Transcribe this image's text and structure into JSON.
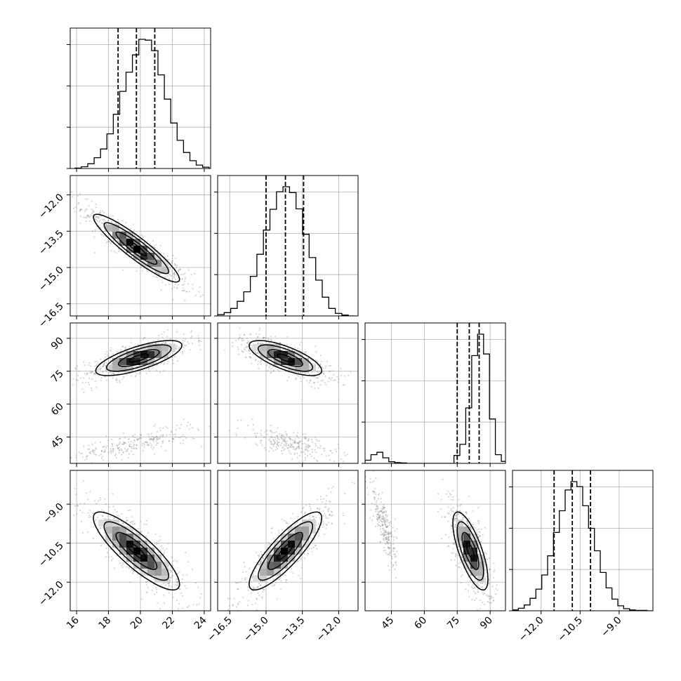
{
  "chart_data": {
    "type": "corner",
    "params": [
      {
        "ticks": [
          "16",
          "18",
          "20",
          "22",
          "24"
        ],
        "lim": [
          15.6,
          24.4
        ],
        "quantiles": [
          18.6,
          19.75,
          20.9
        ]
      },
      {
        "ticks": [
          "−16.5",
          "−15.0",
          "−13.5",
          "−12.0"
        ],
        "lim": [
          -17.0,
          -11.2
        ],
        "quantiles": [
          -15.0,
          -14.2,
          -13.45
        ]
      },
      {
        "ticks": [
          "45",
          "60",
          "75",
          "90"
        ],
        "lim": [
          33.0,
          97.0
        ],
        "quantiles": [
          75.0,
          80.5,
          85.0
        ]
      },
      {
        "ticks": [
          "−12.0",
          "−10.5",
          "−9.0"
        ],
        "lim": [
          -13.1,
          -7.7
        ],
        "quantiles": [
          -11.5,
          -10.8,
          -10.1
        ]
      }
    ],
    "marginals": [
      {
        "bin_start": 15.9,
        "bin_width": 0.4,
        "counts": [
          1,
          4,
          11,
          25,
          45,
          80,
          125,
          178,
          222,
          262,
          298,
          296,
          272,
          216,
          160,
          105,
          65,
          37,
          18,
          8,
          3,
          0
        ]
      },
      {
        "bin_start": -17.0,
        "bin_width": 0.27,
        "counts": [
          3,
          8,
          18,
          35,
          58,
          95,
          148,
          206,
          256,
          298,
          310,
          296,
          257,
          196,
          140,
          86,
          45,
          18,
          6,
          2,
          0
        ]
      },
      {
        "bin_start": 33.0,
        "bin_width": 2.7,
        "counts": [
          8,
          22,
          28,
          14,
          4,
          2,
          1,
          0,
          0,
          0,
          0,
          0,
          0,
          0,
          0,
          20,
          48,
          140,
          272,
          326,
          276,
          112,
          22,
          5
        ]
      },
      {
        "bin_start": -13.1,
        "bin_width": 0.225,
        "counts": [
          2,
          6,
          14,
          30,
          52,
          86,
          132,
          188,
          240,
          290,
          310,
          298,
          252,
          198,
          144,
          92,
          55,
          28,
          12,
          5,
          2,
          1,
          1,
          0
        ]
      }
    ],
    "pairs": [
      {
        "row": 1,
        "col": 0,
        "mean": [
          19.75,
          -14.2
        ],
        "sd": [
          1.35,
          0.7
        ],
        "corr": -0.92
      },
      {
        "row": 2,
        "col": 0,
        "mean": [
          19.9,
          81.0
        ],
        "sd": [
          1.35,
          4.0
        ],
        "corr": 0.72,
        "secondary": {
          "mean": [
            19.7,
            42.0
          ],
          "sd": [
            1.6,
            3.2
          ],
          "corr": 0.75
        }
      },
      {
        "row": 2,
        "col": 1,
        "mean": [
          -14.2,
          81.0
        ],
        "sd": [
          0.75,
          4.0
        ],
        "corr": -0.72,
        "secondary": {
          "mean": [
            -14.0,
            42.0
          ],
          "sd": [
            0.8,
            3.2
          ],
          "corr": -0.7
        }
      },
      {
        "row": 3,
        "col": 0,
        "mean": [
          19.75,
          -10.8
        ],
        "sd": [
          1.35,
          0.75
        ],
        "corr": -0.85
      },
      {
        "row": 3,
        "col": 1,
        "mean": [
          -14.2,
          -10.8
        ],
        "sd": [
          0.75,
          0.75
        ],
        "corr": 0.85
      },
      {
        "row": 3,
        "col": 2,
        "mean": [
          81.0,
          -10.8
        ],
        "sd": [
          4.0,
          0.75
        ],
        "corr": -0.72,
        "secondary": {
          "mean": [
            42.0,
            -9.9
          ],
          "sd": [
            2.2,
            0.6
          ],
          "corr": -0.75
        }
      }
    ],
    "grid": true
  }
}
